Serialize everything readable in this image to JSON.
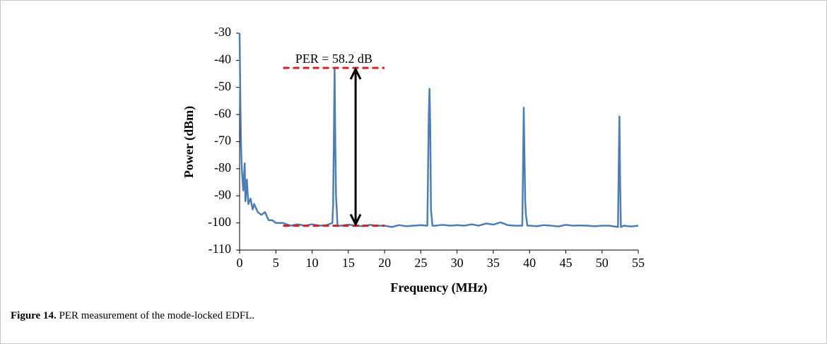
{
  "chart_data": {
    "type": "line",
    "x_label": "Frequency (MHz)",
    "y_label": "Power (dBm)",
    "color": "#4a7ebb",
    "x": [
      0,
      0.1,
      0.2,
      0.3,
      0.5,
      0.7,
      0.8,
      1,
      1.2,
      1.5,
      1.8,
      2,
      2.5,
      3,
      3.5,
      4,
      4.5,
      5,
      6,
      7,
      8,
      9,
      10,
      11,
      12,
      12.8,
      12.9,
      13.0,
      13.1,
      13.2,
      13.3,
      13.4,
      13.5,
      14,
      15,
      16,
      17,
      18,
      19,
      20,
      21,
      22,
      23,
      24,
      25,
      25.9,
      26.0,
      26.1,
      26.2,
      26.3,
      26.4,
      26.6,
      27,
      28,
      29,
      30,
      31,
      32,
      33,
      34,
      35,
      36,
      37,
      38,
      39.0,
      39.1,
      39.2,
      39.3,
      39.4,
      39.5,
      39.7,
      40,
      41,
      42,
      43,
      44,
      45,
      46,
      47,
      48,
      49,
      50,
      51,
      52.2,
      52.3,
      52.4,
      52.5,
      52.6,
      53,
      54,
      55
    ],
    "values": [
      -30,
      -55,
      -72,
      -80,
      -88,
      -78,
      -92,
      -84,
      -93,
      -91,
      -95,
      -93,
      -96,
      -97,
      -96,
      -99,
      -99,
      -100,
      -100,
      -101,
      -100.5,
      -101,
      -100.5,
      -101,
      -100.8,
      -100,
      -93,
      -70,
      -42.8,
      -70,
      -90,
      -95,
      -101,
      -101,
      -100.6,
      -101,
      -101.2,
      -100.7,
      -101,
      -101,
      -101.5,
      -100.8,
      -101.2,
      -101,
      -100.8,
      -101,
      -80,
      -60,
      -50.5,
      -65,
      -95,
      -101,
      -101,
      -100.7,
      -101,
      -100.8,
      -101,
      -100.5,
      -101,
      -100.2,
      -100.6,
      -99.8,
      -100.8,
      -101,
      -101,
      -80,
      -57.5,
      -75,
      -92,
      -97,
      -101,
      -101,
      -101.2,
      -100.8,
      -101,
      -101.3,
      -100.7,
      -101,
      -100.9,
      -101,
      -101.2,
      -101,
      -101,
      -101.5,
      -80,
      -60.7,
      -85,
      -101.5,
      -101,
      -101.3,
      -101
    ],
    "xlim": [
      0,
      55
    ],
    "xticks": [
      0,
      5,
      10,
      15,
      20,
      25,
      30,
      35,
      40,
      45,
      50,
      55
    ],
    "ylim": [
      -110,
      -30
    ],
    "yticks": [
      -110,
      -100,
      -90,
      -80,
      -70,
      -60,
      -50,
      -40,
      -30
    ],
    "annotation": {
      "text": "PER = 58.2 dB",
      "top": -42.8,
      "bottom": -101,
      "x": 16,
      "span": [
        6,
        20
      ],
      "color": "#e02020"
    }
  },
  "caption": {
    "label": "Figure 14.",
    "text": "PER measurement of the mode-locked EDFL."
  }
}
